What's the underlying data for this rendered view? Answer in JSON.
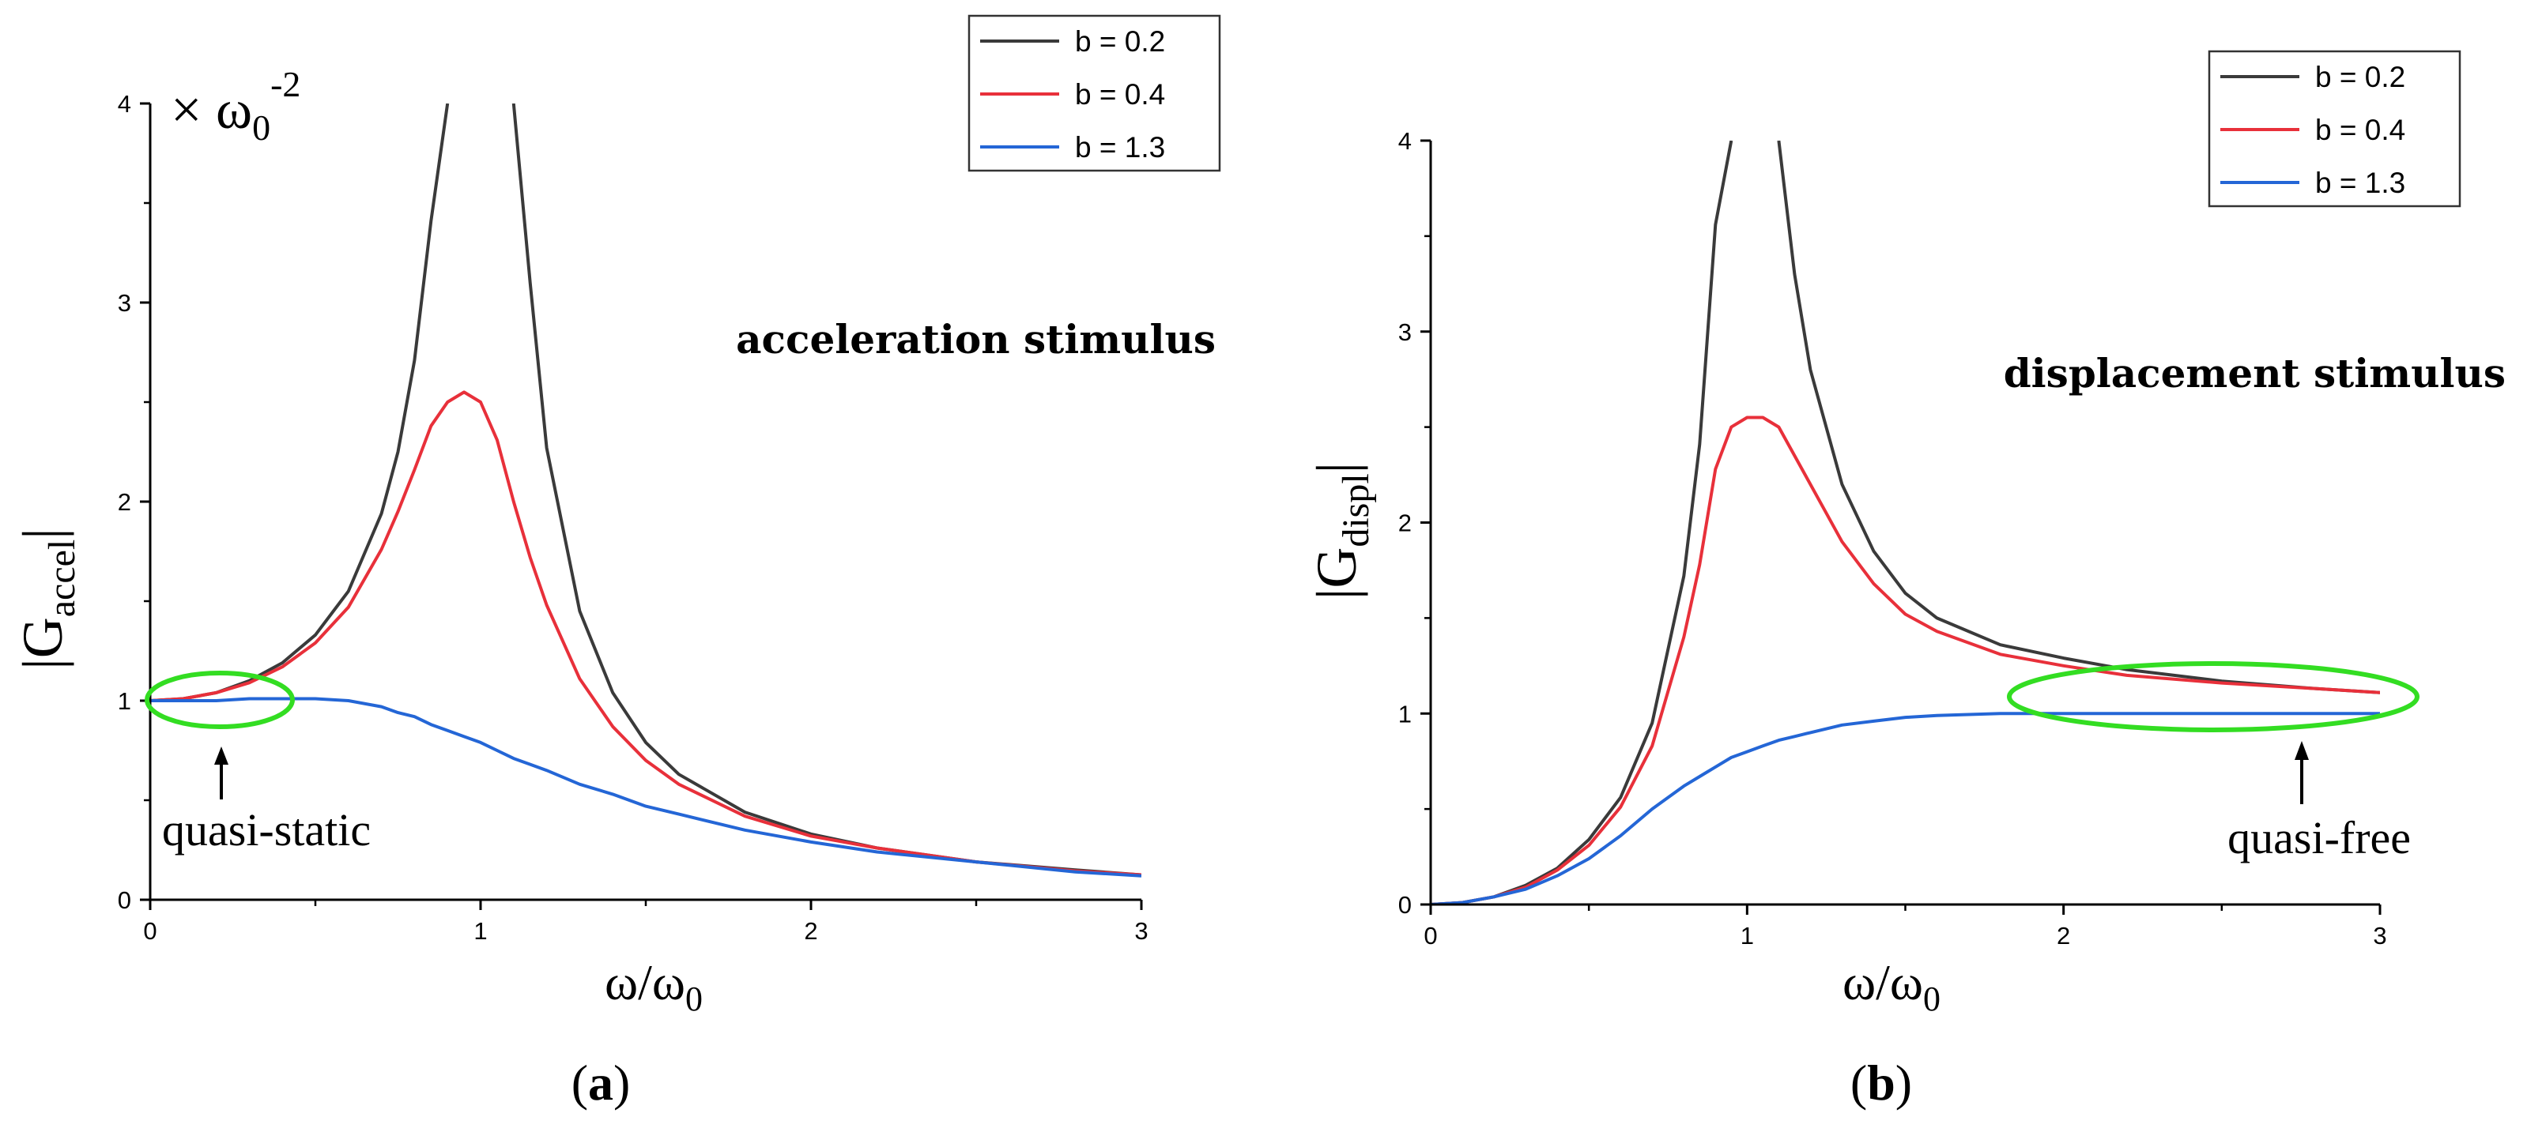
{
  "chart_data": [
    {
      "type": "line",
      "panel": "(a)",
      "caption_open": "(",
      "caption_letter": "a",
      "caption_close": ")",
      "annotation": "acceleration stimulus",
      "ylabel_base": "|G",
      "ylabel_sub": "accel",
      "ylabel_end": "|",
      "xlabel_base": "ω/ω",
      "xlabel_sub": "0",
      "scale_prefix": "× ω",
      "scale_sub": "0",
      "scale_sup": "-2",
      "region_note": "quasi-static",
      "xlim": [
        0,
        3
      ],
      "ylim": [
        0,
        4
      ],
      "xticks": [
        "0",
        "1",
        "2",
        "3"
      ],
      "yticks": [
        "0",
        "1",
        "2",
        "3",
        "4"
      ],
      "legend_position": "top-right",
      "x": [
        0,
        0.1,
        0.2,
        0.3,
        0.4,
        0.5,
        0.6,
        0.7,
        0.75,
        0.8,
        0.85,
        0.9,
        0.95,
        1.0,
        1.05,
        1.1,
        1.15,
        1.2,
        1.3,
        1.4,
        1.5,
        1.6,
        1.8,
        2.0,
        2.2,
        2.5,
        2.8,
        3.0
      ],
      "series": [
        {
          "name": "b = 0.2",
          "color": "#3a3a3a",
          "values": [
            1.0,
            1.01,
            1.04,
            1.1,
            1.19,
            1.33,
            1.55,
            1.94,
            2.25,
            2.71,
            3.41,
            4.0,
            null,
            null,
            null,
            4.0,
            3.1,
            2.27,
            1.45,
            1.04,
            0.79,
            0.63,
            0.44,
            0.33,
            0.26,
            0.19,
            0.15,
            0.125
          ]
        },
        {
          "name": "b = 0.4",
          "color": "#e8303a",
          "values": [
            1.0,
            1.01,
            1.04,
            1.09,
            1.17,
            1.29,
            1.47,
            1.76,
            1.95,
            2.16,
            2.38,
            2.5,
            2.55,
            2.5,
            2.31,
            2.0,
            1.72,
            1.48,
            1.11,
            0.87,
            0.7,
            0.58,
            0.42,
            0.32,
            0.26,
            0.19,
            0.145,
            0.125
          ]
        },
        {
          "name": "b = 1.3",
          "color": "#2466d6",
          "values": [
            1.0,
            1.0,
            1.0,
            1.01,
            1.01,
            1.01,
            1.0,
            0.97,
            0.94,
            0.92,
            0.88,
            0.85,
            0.82,
            0.79,
            0.75,
            0.71,
            0.68,
            0.65,
            0.58,
            0.53,
            0.47,
            0.43,
            0.35,
            0.29,
            0.24,
            0.19,
            0.14,
            0.12
          ]
        }
      ]
    },
    {
      "type": "line",
      "panel": "(b)",
      "caption_open": "(",
      "caption_letter": "b",
      "caption_close": ")",
      "annotation": "displacement stimulus",
      "ylabel_base": "|G",
      "ylabel_sub": "displ",
      "ylabel_end": "|",
      "xlabel_base": "ω/ω",
      "xlabel_sub": "0",
      "region_note": "quasi-free",
      "xlim": [
        0,
        3
      ],
      "ylim": [
        0,
        4
      ],
      "xticks": [
        "0",
        "1",
        "2",
        "3"
      ],
      "yticks": [
        "0",
        "1",
        "2",
        "3",
        "4"
      ],
      "legend_position": "top-right",
      "x": [
        0,
        0.1,
        0.2,
        0.3,
        0.4,
        0.5,
        0.6,
        0.7,
        0.8,
        0.85,
        0.9,
        0.95,
        1.0,
        1.05,
        1.1,
        1.15,
        1.2,
        1.3,
        1.4,
        1.5,
        1.6,
        1.8,
        2.0,
        2.2,
        2.5,
        2.8,
        3.0
      ],
      "series": [
        {
          "name": "b = 0.2",
          "color": "#3a3a3a",
          "values": [
            0.0,
            0.01,
            0.04,
            0.1,
            0.19,
            0.34,
            0.56,
            0.95,
            1.72,
            2.41,
            3.56,
            4.0,
            null,
            null,
            4.0,
            3.3,
            2.8,
            2.2,
            1.85,
            1.63,
            1.5,
            1.36,
            1.29,
            1.23,
            1.17,
            1.13,
            1.11
          ]
        },
        {
          "name": "b = 0.4",
          "color": "#e8303a",
          "values": [
            0.0,
            0.01,
            0.04,
            0.09,
            0.18,
            0.31,
            0.51,
            0.83,
            1.4,
            1.78,
            2.28,
            2.5,
            2.55,
            2.55,
            2.5,
            2.35,
            2.2,
            1.9,
            1.68,
            1.52,
            1.43,
            1.31,
            1.25,
            1.2,
            1.16,
            1.13,
            1.11
          ]
        },
        {
          "name": "b = 1.3",
          "color": "#2466d6",
          "values": [
            0.0,
            0.01,
            0.04,
            0.08,
            0.15,
            0.24,
            0.36,
            0.5,
            0.62,
            0.67,
            0.72,
            0.77,
            0.8,
            0.83,
            0.86,
            0.88,
            0.9,
            0.94,
            0.96,
            0.98,
            0.99,
            1.0,
            1.0,
            1.0,
            1.0,
            1.0,
            1.0
          ]
        }
      ]
    }
  ]
}
